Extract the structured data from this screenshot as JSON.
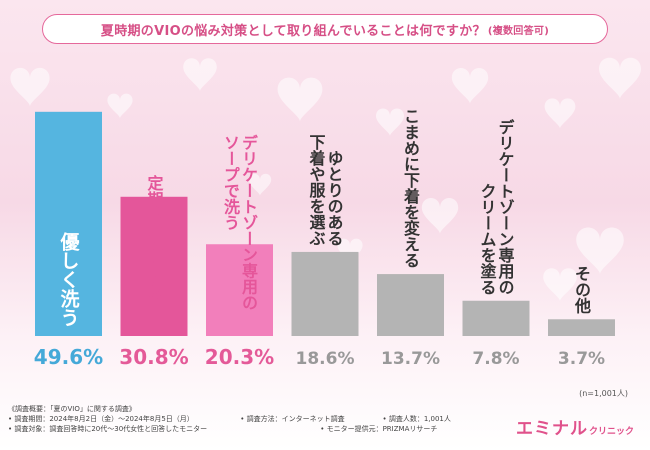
{
  "title": "夏時期のVIOの悩み対策として取り組んでいることは何ですか？",
  "title_note": "(複数回答可)",
  "chart_data": {
    "type": "bar",
    "categories": [
      "優しく洗う",
      "定期的に処理する",
      "デリケートゾーン専用のソープで洗う",
      "ゆとりのある下着や服を選ぶ",
      "こまめに下着を変える",
      "デリケートゾーン専用のクリームを塗る",
      "その他"
    ],
    "values": [
      49.6,
      30.8,
      20.3,
      18.6,
      13.7,
      7.8,
      3.7
    ],
    "value_labels": [
      "49.6%",
      "30.8%",
      "20.3%",
      "18.6%",
      "13.7%",
      "7.8%",
      "3.7%"
    ],
    "label_lines": [
      [
        "優しく洗う"
      ],
      [
        "定期的に処理する"
      ],
      [
        "デリケートゾーン専用の",
        "ソープで洗う"
      ],
      [
        "ゆとりのある",
        "下着や服を選ぶ"
      ],
      [
        "こまめに下着を変える"
      ],
      [
        "デリケートゾーン専用の",
        "クリームを塗る"
      ],
      [
        "その他"
      ]
    ],
    "ylim": [
      0,
      50
    ],
    "colors": {
      "bar_blue": "#55b5e0",
      "bar_magenta": "#e4569a",
      "bar_pink": "#f27fbb",
      "bar_gray": "#b4b4b4",
      "label_pink": "#e45a98",
      "label_blue": "#45a9d8",
      "label_gray": "#999999"
    }
  },
  "n_label": "(n=1,001人)",
  "footer": {
    "line1": "《調査概要：「夏のVIO」に関する調査》",
    "period": "• 調査期間：2024年8月2日（金）～2024年8月5日（月）",
    "method": "• 調査方法：インターネット調査",
    "count": "• 調査人数：1,001人",
    "target": "• 調査対象：調査回答時に20代～30代女性と回答したモニター",
    "provider": "• モニター提供元：PRIZMAリサーチ"
  },
  "logo": {
    "main": "エミナル",
    "sub": "クリニック"
  }
}
